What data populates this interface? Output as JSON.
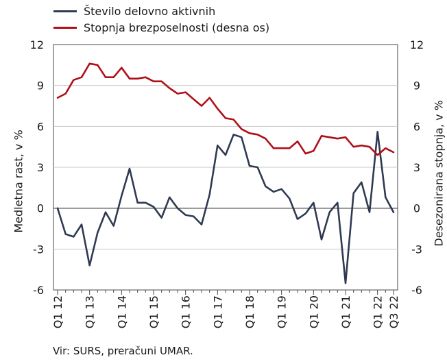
{
  "chart_data": {
    "type": "line",
    "yaxis_left": {
      "title": "Medletna rast, v %",
      "ylim": [
        -6,
        12
      ],
      "ticks": [
        "12",
        "9",
        "6",
        "3",
        "0",
        "-3",
        "-6"
      ]
    },
    "yaxis_right": {
      "title": "Desezonirana stopnja, v %",
      "ylim": [
        -6,
        12
      ],
      "ticks": [
        "12",
        "9",
        "6",
        "3",
        "0",
        "-3",
        "-6"
      ]
    },
    "x_labels": [
      "Q1 12",
      "Q1 13",
      "Q1 14",
      "Q1 15",
      "Q1 16",
      "Q1 17",
      "Q1 18",
      "Q1 19",
      "Q1 20",
      "Q1 21",
      "Q1 22",
      "Q3 22"
    ],
    "x_label_positions": [
      0,
      4,
      8,
      12,
      16,
      20,
      24,
      28,
      32,
      36,
      40,
      42
    ],
    "x_count": 43,
    "grid": true,
    "legend_position": "top-left",
    "series": [
      {
        "name": "Število delovno aktivnih",
        "color": "#2f3a52",
        "axis": "left",
        "values": [
          0,
          -1.9,
          -2.1,
          -1.2,
          -4.2,
          -1.8,
          -0.3,
          -1.3,
          0.9,
          2.9,
          0.4,
          0.4,
          0.1,
          -0.7,
          0.8,
          0.0,
          -0.5,
          -0.6,
          -1.2,
          1.0,
          4.6,
          3.9,
          5.4,
          5.2,
          3.1,
          3.0,
          1.6,
          1.2,
          1.4,
          0.7,
          -0.8,
          -0.4,
          0.4,
          -2.3,
          -0.3,
          0.4,
          -5.5,
          1.1,
          1.9,
          -0.3,
          5.6,
          0.8,
          -0.3
        ]
      },
      {
        "name": "Stopnja brezposelnosti (desna os)",
        "color": "#b00f17",
        "axis": "right",
        "values": [
          8.1,
          8.4,
          9.4,
          9.6,
          10.6,
          10.5,
          9.6,
          9.6,
          10.3,
          9.5,
          9.5,
          9.6,
          9.3,
          9.3,
          8.8,
          8.4,
          8.5,
          8.0,
          7.5,
          8.1,
          7.3,
          6.6,
          6.5,
          5.8,
          5.5,
          5.4,
          5.1,
          4.4,
          4.4,
          4.4,
          4.9,
          4.0,
          4.2,
          5.3,
          5.2,
          5.1,
          5.2,
          4.5,
          4.6,
          4.5,
          3.9,
          4.4,
          4.1
        ]
      }
    ]
  },
  "legend": [
    {
      "label": "Število delovno aktivnih",
      "color": "#2f3a52"
    },
    {
      "label": "Stopnja brezposelnosti (desna os)",
      "color": "#b00f17"
    }
  ],
  "source": "Vir: SURS, preračuni UMAR."
}
